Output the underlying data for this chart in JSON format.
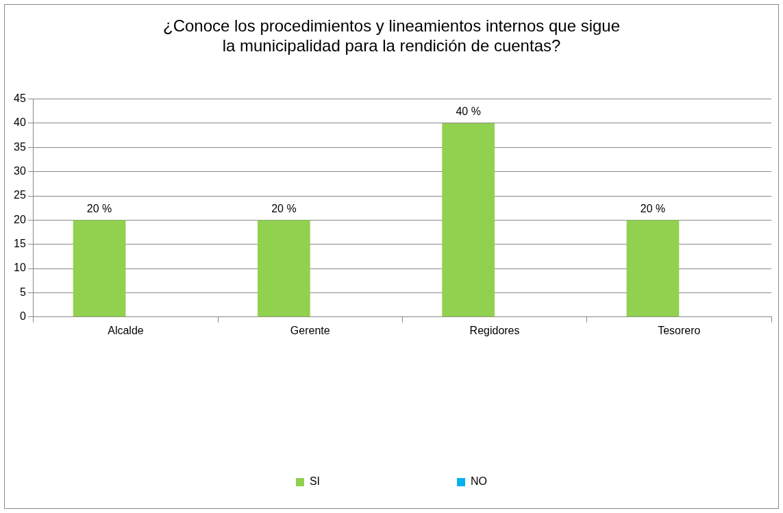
{
  "chart_data": {
    "type": "bar",
    "title": "¿Conoce los procedimientos y lineamientos internos que sigue\nla municipalidad para la rendición de cuentas?",
    "categories": [
      "Alcalde",
      "Gerente",
      "Regidores",
      "Tesorero"
    ],
    "series": [
      {
        "name": "SI",
        "color": "#92d050",
        "values": [
          20,
          20,
          40,
          20
        ],
        "value_labels": [
          "20 %",
          "20 %",
          "40 %",
          "20 %"
        ]
      },
      {
        "name": "NO",
        "color": "#00b0f0",
        "values": [
          null,
          null,
          null,
          null
        ]
      }
    ],
    "ylim": [
      0,
      45
    ],
    "yticks": [
      0,
      5,
      10,
      15,
      20,
      25,
      30,
      35,
      40,
      45
    ],
    "grid": "y",
    "legend": "bottom"
  }
}
